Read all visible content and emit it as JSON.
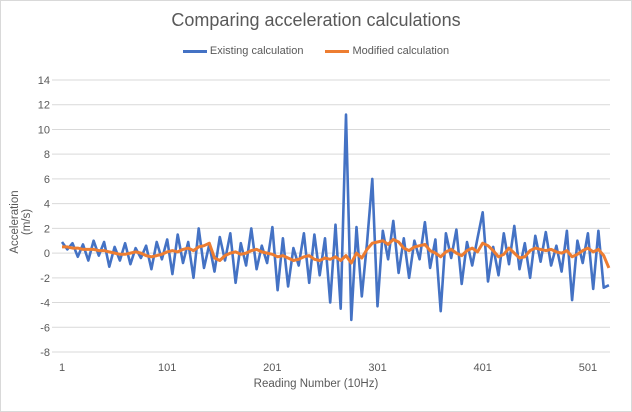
{
  "chart_data": {
    "type": "line",
    "title": "Comparing acceleration calculations",
    "xlabel": "Reading Number  (10Hz)",
    "ylabel": "Acceleration (m/s)",
    "ylim": [
      -8,
      14
    ],
    "yticks": [
      "-8",
      "-6",
      "-4",
      "-2",
      "0",
      "2",
      "4",
      "6",
      "8",
      "10",
      "12",
      "14"
    ],
    "xlim": [
      1,
      522
    ],
    "xticks": [
      "1",
      "101",
      "201",
      "301",
      "401",
      "501"
    ],
    "grid": "horizontal",
    "legend": "top",
    "x": [
      1,
      6,
      11,
      16,
      21,
      26,
      31,
      36,
      41,
      46,
      51,
      56,
      61,
      66,
      71,
      76,
      81,
      86,
      91,
      96,
      101,
      106,
      111,
      116,
      121,
      126,
      131,
      136,
      141,
      146,
      151,
      156,
      161,
      166,
      171,
      176,
      181,
      186,
      191,
      196,
      201,
      206,
      211,
      216,
      221,
      226,
      231,
      236,
      241,
      246,
      251,
      256,
      261,
      266,
      271,
      276,
      281,
      286,
      291,
      296,
      301,
      306,
      311,
      316,
      321,
      326,
      331,
      336,
      341,
      346,
      351,
      356,
      361,
      366,
      371,
      376,
      381,
      386,
      391,
      396,
      401,
      406,
      411,
      416,
      421,
      426,
      431,
      436,
      441,
      446,
      451,
      456,
      461,
      466,
      471,
      476,
      481,
      486,
      491,
      496,
      501,
      506,
      511,
      516,
      521
    ],
    "series": [
      {
        "name": "Existing calculation",
        "color": "#4472C4",
        "values": [
          0.9,
          0.3,
          0.8,
          -0.3,
          0.7,
          -0.6,
          1.0,
          -0.2,
          0.9,
          -1.1,
          0.5,
          -0.6,
          0.8,
          -0.9,
          0.4,
          -0.4,
          0.6,
          -1.3,
          0.9,
          -0.5,
          1.1,
          -1.7,
          1.5,
          -0.8,
          0.9,
          -2.0,
          2.0,
          -1.2,
          0.7,
          -1.5,
          1.3,
          -0.6,
          1.6,
          -2.4,
          0.8,
          -1.0,
          2.0,
          -1.3,
          0.6,
          -0.8,
          2.1,
          -3.0,
          1.2,
          -2.7,
          0.4,
          -1.0,
          1.6,
          -2.4,
          1.5,
          -1.8,
          1.2,
          -4.0,
          2.3,
          -4.5,
          11.2,
          -5.4,
          2.1,
          -3.5,
          0.8,
          6.0,
          -4.3,
          1.8,
          -0.5,
          2.6,
          -1.6,
          1.2,
          -2.0,
          1.0,
          -0.5,
          2.5,
          -1.2,
          1.1,
          -4.7,
          1.6,
          -0.4,
          1.9,
          -2.5,
          0.9,
          -1.0,
          1.2,
          3.3,
          -2.3,
          0.5,
          -1.8,
          1.6,
          -0.9,
          2.2,
          -1.3,
          0.8,
          -2.0,
          1.4,
          -0.7,
          1.7,
          -1.0,
          0.6,
          -1.5,
          1.8,
          -3.8,
          1.0,
          -0.8,
          1.6,
          -2.9,
          1.8,
          -2.8,
          -2.6
        ]
      },
      {
        "name": "Modified calculation",
        "color": "#ED7D31",
        "values": [
          0.5,
          0.5,
          0.4,
          0.4,
          0.3,
          0.3,
          0.3,
          0.2,
          0.2,
          0.1,
          0.0,
          -0.1,
          -0.1,
          0.0,
          0.1,
          0.0,
          -0.2,
          -0.3,
          -0.2,
          -0.1,
          0.1,
          0.2,
          0.1,
          0.3,
          0.4,
          0.2,
          0.5,
          0.6,
          0.8,
          -0.4,
          -0.6,
          -0.2,
          0.0,
          0.1,
          -0.1,
          0.0,
          0.2,
          0.3,
          0.1,
          0.0,
          -0.1,
          -0.3,
          -0.2,
          -0.4,
          -0.6,
          -0.5,
          -0.3,
          -0.2,
          -0.5,
          -0.6,
          -0.4,
          -0.5,
          -0.3,
          -0.6,
          -0.2,
          -0.8,
          0.0,
          -0.4,
          0.3,
          0.8,
          0.9,
          1.0,
          0.7,
          1.1,
          0.9,
          0.4,
          0.2,
          0.5,
          0.6,
          0.7,
          0.2,
          0.0,
          -0.3,
          0.1,
          0.3,
          0.0,
          -0.2,
          0.2,
          0.4,
          0.1,
          0.8,
          0.6,
          0.2,
          -0.3,
          -0.1,
          0.4,
          0.0,
          -0.4,
          -0.3,
          0.2,
          0.4,
          0.3,
          0.2,
          0.3,
          0.1,
          0.0,
          0.2,
          -0.3,
          -0.1,
          0.2,
          0.4,
          0.1,
          0.3,
          -0.2,
          -1.2
        ]
      }
    ]
  }
}
